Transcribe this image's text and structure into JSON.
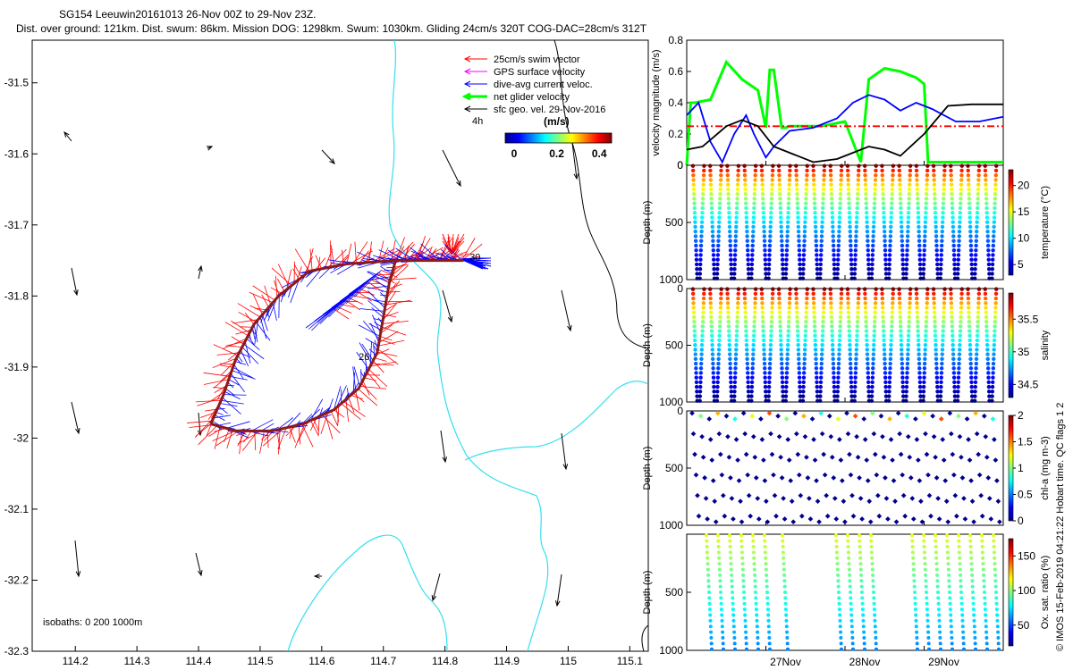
{
  "header": {
    "line1": "SG154 Leeuwin20161013 26-Nov 00Z to 29-Nov 23Z.",
    "line2": "Dist. over ground: 121km. Dist. swum: 86km. Mission DOG: 1298km. Swum: 1030km. Gliding 24cm/s 320T COG-DAC=28cm/s 312T"
  },
  "side_note": "© IMOS 15-Feb-2019 04:21:22 Hobart time. QC flags 1 2",
  "map": {
    "xticks": [
      "114.2",
      "114.3",
      "114.4",
      "114.5",
      "114.6",
      "114.7",
      "114.8",
      "114.9",
      "115",
      "115.1"
    ],
    "yticks": [
      "-31.5",
      "-31.6",
      "-31.7",
      "-31.8",
      "-31.9",
      "-32",
      "-32.1",
      "-32.2",
      "-32.3"
    ],
    "xlim": [
      114.13,
      115.13
    ],
    "ylim": [
      -32.3,
      -31.44
    ],
    "legend": [
      {
        "label": "25cm/s swim vector",
        "color": "#ff0000"
      },
      {
        "label": "GPS surface velocity",
        "color": "#ff00ff"
      },
      {
        "label": "dive-avg current veloc.",
        "color": "#0000ff"
      },
      {
        "label": "net glider velocity",
        "color": "#00ff00"
      },
      {
        "label": "sfc geo. vel. 29-Nov-2016",
        "color": "#000000"
      }
    ],
    "legend_note": "4h",
    "colorbar": {
      "unit": "(m/s)",
      "ticks": [
        "0",
        "0.2",
        "0.4"
      ]
    },
    "isobath_label": "isobaths: 0   200  1000m",
    "day_labels": [
      {
        "text": "30",
        "lon": 114.84,
        "lat": -31.75
      },
      {
        "text": "26",
        "lon": 114.66,
        "lat": -31.89
      }
    ],
    "track": [
      [
        114.42,
        -31.98
      ],
      [
        114.44,
        -31.94
      ],
      [
        114.46,
        -31.89
      ],
      [
        114.49,
        -31.84
      ],
      [
        114.53,
        -31.8
      ],
      [
        114.58,
        -31.765
      ],
      [
        114.64,
        -31.755
      ],
      [
        114.72,
        -31.75
      ],
      [
        114.83,
        -31.75
      ],
      [
        114.72,
        -31.75
      ],
      [
        114.71,
        -31.78
      ],
      [
        114.7,
        -31.83
      ],
      [
        114.69,
        -31.88
      ],
      [
        114.66,
        -31.93
      ],
      [
        114.62,
        -31.96
      ],
      [
        114.57,
        -31.98
      ],
      [
        114.52,
        -31.99
      ],
      [
        114.46,
        -31.99
      ],
      [
        114.42,
        -31.98
      ]
    ]
  },
  "chart_data": [
    {
      "type": "line",
      "ylabel": "velocity magnitude (m/s)",
      "ylim": [
        0,
        0.8
      ],
      "yticks": [
        "0",
        "0.2",
        "0.4",
        "0.6",
        "0.8"
      ],
      "x_days": [
        26,
        30
      ],
      "series": [
        {
          "color": "#00ff00",
          "x": [
            26.0,
            26.05,
            26.1,
            26.3,
            26.5,
            26.7,
            26.9,
            27.0,
            27.05,
            27.1,
            27.2,
            27.25,
            27.3,
            27.7,
            28.0,
            28.2,
            28.3,
            28.5,
            28.7,
            28.9,
            29.0,
            29.05,
            29.1,
            29.4,
            29.6,
            30.0
          ],
          "y": [
            0.0,
            0.4,
            0.4,
            0.42,
            0.66,
            0.55,
            0.48,
            0.24,
            0.61,
            0.61,
            0.24,
            0.24,
            0.25,
            0.25,
            0.28,
            0.02,
            0.55,
            0.62,
            0.6,
            0.56,
            0.52,
            0.02,
            0.02,
            0.02,
            0.02,
            0.02
          ]
        },
        {
          "color": "#ff0000",
          "dash": true,
          "x": [
            26.0,
            30.0
          ],
          "y": [
            0.25,
            0.25
          ]
        },
        {
          "color": "#0000ff",
          "x": [
            26.0,
            26.15,
            26.3,
            26.45,
            26.6,
            26.75,
            26.85,
            27.0,
            27.1,
            27.3,
            27.6,
            27.9,
            28.1,
            28.3,
            28.5,
            28.7,
            28.9,
            29.1,
            29.4,
            29.7,
            30.0
          ],
          "y": [
            0.32,
            0.4,
            0.15,
            0.02,
            0.2,
            0.32,
            0.2,
            0.05,
            0.12,
            0.22,
            0.24,
            0.3,
            0.4,
            0.45,
            0.42,
            0.35,
            0.4,
            0.36,
            0.28,
            0.28,
            0.31
          ]
        },
        {
          "color": "#000000",
          "x": [
            26.0,
            26.2,
            26.5,
            26.7,
            26.9,
            27.1,
            27.3,
            27.6,
            27.9,
            28.1,
            28.3,
            28.5,
            28.7,
            29.0,
            29.3,
            29.6,
            30.0
          ],
          "y": [
            0.1,
            0.12,
            0.25,
            0.29,
            0.25,
            0.12,
            0.08,
            0.02,
            0.04,
            0.08,
            0.12,
            0.1,
            0.06,
            0.2,
            0.38,
            0.39,
            0.39
          ]
        }
      ]
    },
    {
      "type": "scatter",
      "variable": "temperature",
      "ylabel": "Depth (m)",
      "yticks": [
        "0",
        "500",
        "1000"
      ],
      "cbar_label": "temperature (°C)",
      "cbar_ticks": [
        "5",
        "10",
        "15",
        "20"
      ],
      "cbar_range": [
        3,
        23
      ],
      "profiles": 18,
      "surface_value": 22,
      "bottom_value": 4
    },
    {
      "type": "scatter",
      "variable": "salinity",
      "ylabel": "Depth (m)",
      "yticks": [
        "0",
        "500",
        "1000"
      ],
      "cbar_label": "salinity",
      "cbar_ticks": [
        "34.5",
        "35",
        "35.5"
      ],
      "cbar_range": [
        34.3,
        35.9
      ],
      "profiles": 18,
      "surface_value": 35.8,
      "bottom_value": 34.4
    },
    {
      "type": "scatter",
      "variable": "chl-a",
      "ylabel": "Depth (m)",
      "yticks": [
        "0",
        "500",
        "1000"
      ],
      "cbar_label": "chl-a (mg m-3)",
      "cbar_ticks": [
        "0",
        "0.5",
        "1",
        "1.5",
        "2"
      ],
      "cbar_range": [
        0,
        2
      ],
      "profiles": 36
    },
    {
      "type": "scatter",
      "variable": "oxygen",
      "ylabel": "Depth (m)",
      "yticks": [
        "500",
        "1000"
      ],
      "cbar_label": "Ox. sat. ratio (%)",
      "cbar_ticks": [
        "50",
        "100",
        "150"
      ],
      "cbar_range": [
        20,
        175
      ]
    }
  ],
  "time_axis": {
    "labels": [
      "27Nov",
      "28Nov",
      "29Nov"
    ]
  }
}
